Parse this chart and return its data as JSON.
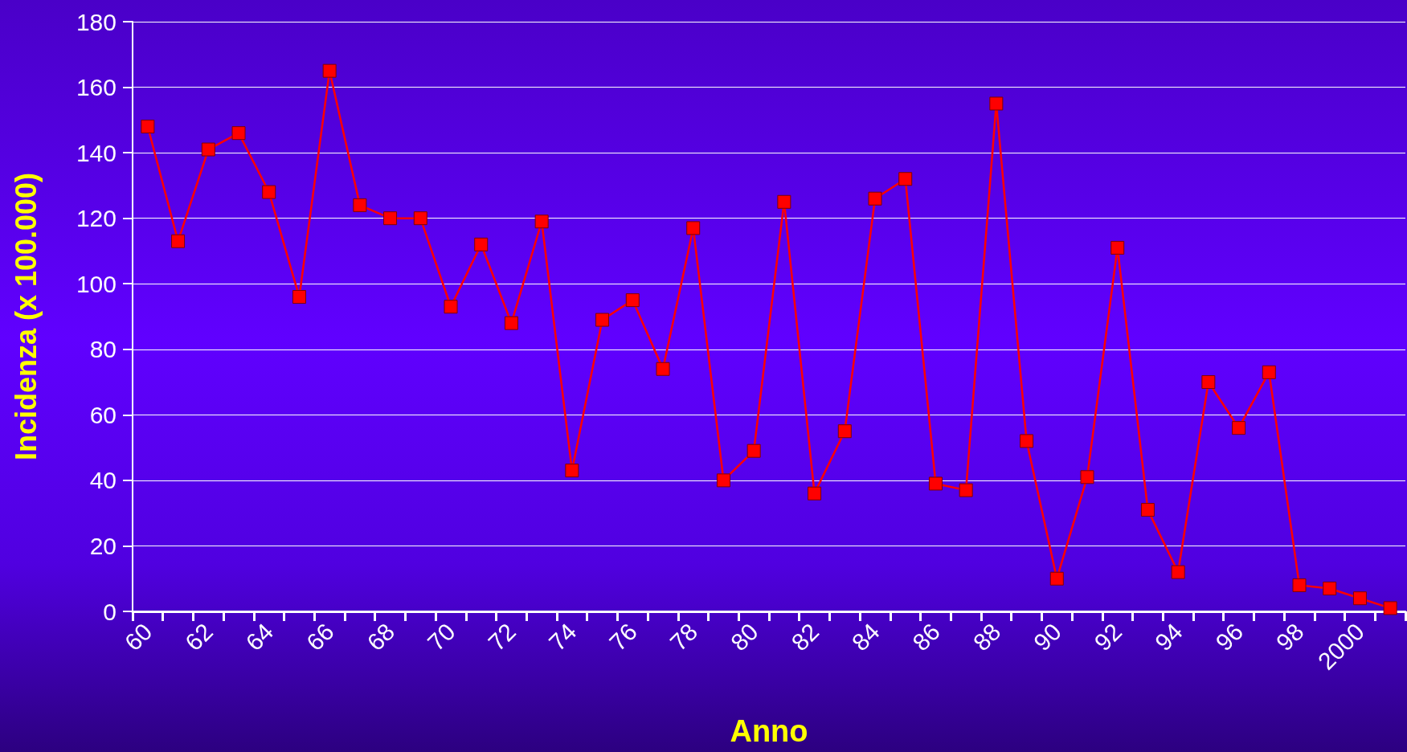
{
  "chart_data": {
    "type": "line",
    "xlabel": "Anno",
    "ylabel": "Incidenza (x 100.000)",
    "categories": [
      "60",
      null,
      "62",
      null,
      "64",
      null,
      "66",
      null,
      "68",
      null,
      "70",
      null,
      "72",
      null,
      "74",
      null,
      "76",
      null,
      "78",
      null,
      "80",
      null,
      "82",
      null,
      "84",
      null,
      "86",
      null,
      "88",
      null,
      "90",
      null,
      "92",
      null,
      "94",
      null,
      "96",
      null,
      "98",
      null,
      "2000",
      null
    ],
    "series": [
      {
        "color": "#ff0000",
        "values": [
          148,
          113,
          141,
          146,
          128,
          96,
          165,
          124,
          120,
          120,
          93,
          112,
          88,
          119,
          43,
          89,
          95,
          74,
          117,
          40,
          49,
          125,
          36,
          55,
          126,
          132,
          39,
          37,
          155,
          52,
          10,
          41,
          111,
          31,
          12,
          70,
          56,
          73,
          8,
          7,
          4,
          1
        ]
      }
    ],
    "ylim": [
      0,
      180
    ],
    "yticks": [
      0,
      20,
      40,
      60,
      80,
      100,
      120,
      140,
      160,
      180
    ],
    "grid": "y",
    "marker": "square",
    "line_style": "solid"
  }
}
